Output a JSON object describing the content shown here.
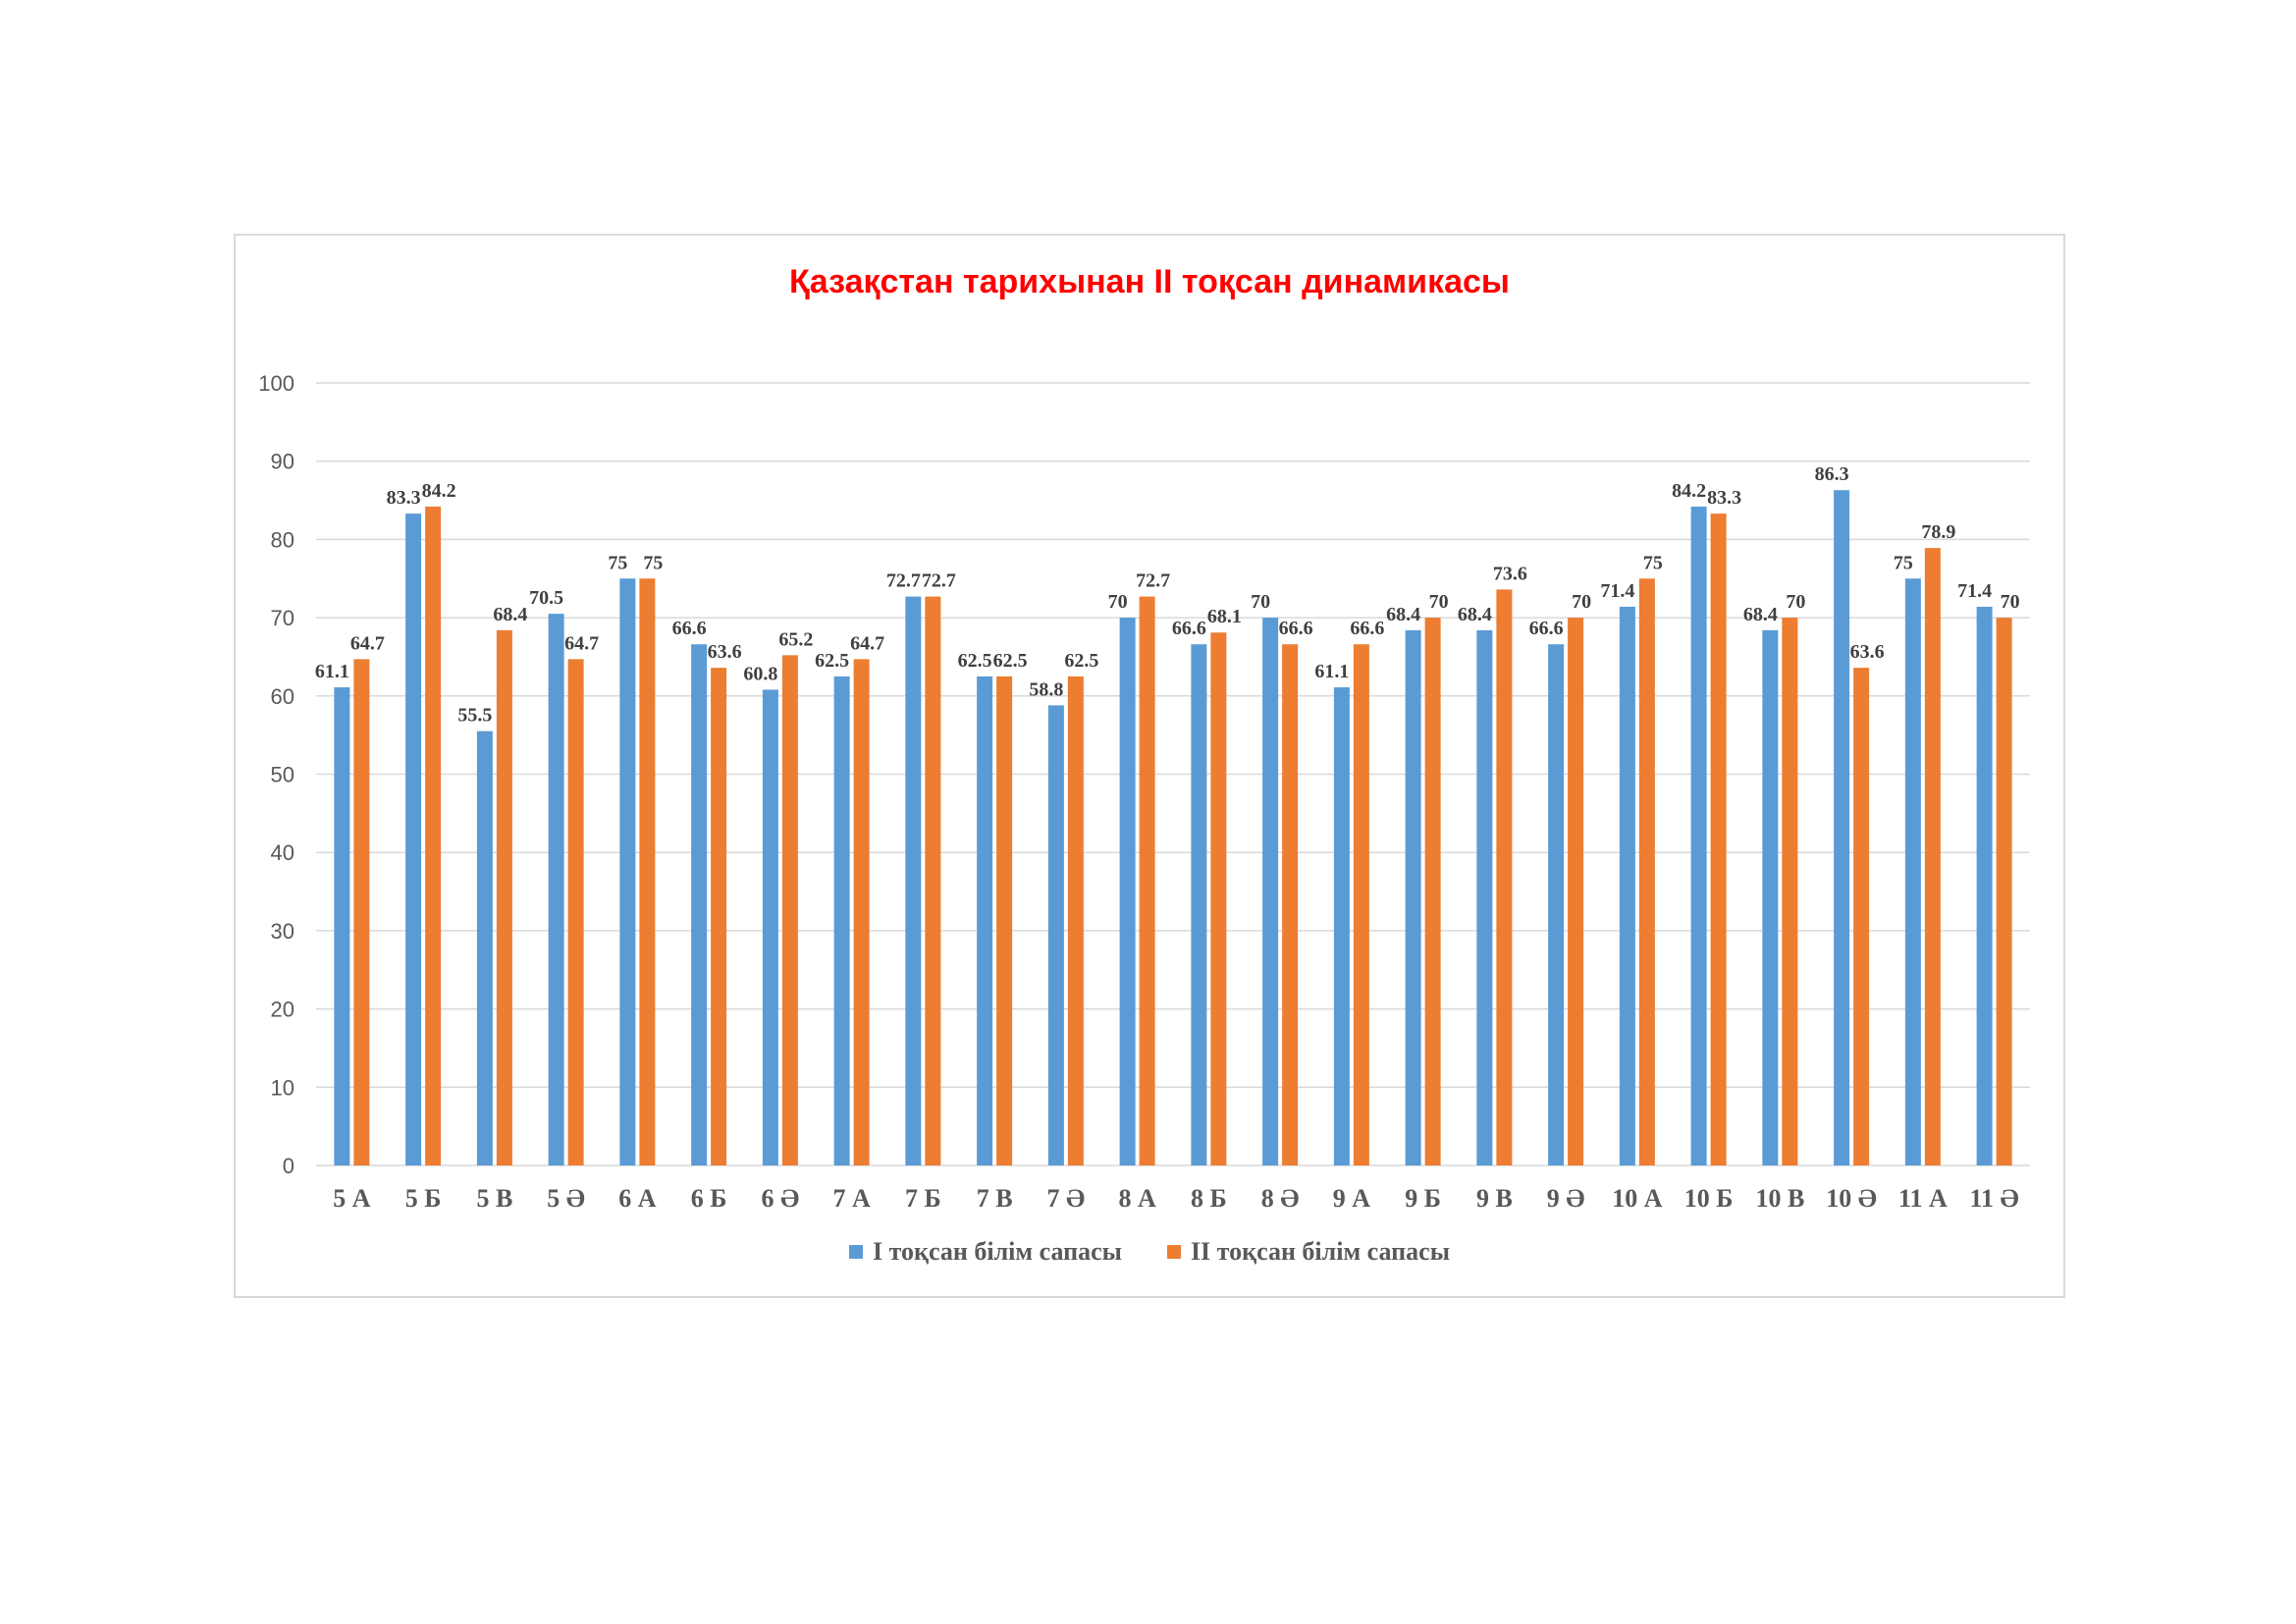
{
  "chart_data": {
    "type": "bar",
    "title": "Қазақстан тарихынан II тоқсан динамикасы",
    "xlabel": "",
    "ylabel": "",
    "ylim": [
      0,
      100
    ],
    "yticks": [
      0,
      10,
      20,
      30,
      40,
      50,
      60,
      70,
      80,
      90,
      100
    ],
    "grid": true,
    "legend_position": "bottom",
    "categories": [
      "5 А",
      "5 Б",
      "5 В",
      "5 Ә",
      "6 А",
      "6 Б",
      "6 Ә",
      "7 А",
      "7 Б",
      "7 В",
      "7 Ә",
      "8 А",
      "8 Б",
      "8 Ә",
      "9 А",
      "9 Б",
      "9 В",
      "9 Ә",
      "10 А",
      "10 Б",
      "10 В",
      "10 Ә",
      "11 А",
      "11 Ә"
    ],
    "series": [
      {
        "name": "І тоқсан білім сапасы",
        "color": "#5b9bd5",
        "values": [
          61.1,
          83.3,
          55.5,
          70.5,
          75,
          66.6,
          60.8,
          62.5,
          72.7,
          62.5,
          58.8,
          70,
          66.6,
          70,
          61.1,
          68.4,
          68.4,
          66.6,
          71.4,
          84.2,
          68.4,
          86.3,
          75,
          71.4
        ]
      },
      {
        "name": "ІІ тоқсан білім сапасы",
        "color": "#ed7d31",
        "values": [
          64.7,
          84.2,
          68.4,
          64.7,
          75,
          63.6,
          65.2,
          64.7,
          72.7,
          62.5,
          62.5,
          72.7,
          68.1,
          66.6,
          66.6,
          70,
          73.6,
          70,
          75,
          83.3,
          70,
          63.6,
          78.9,
          70
        ]
      }
    ]
  }
}
